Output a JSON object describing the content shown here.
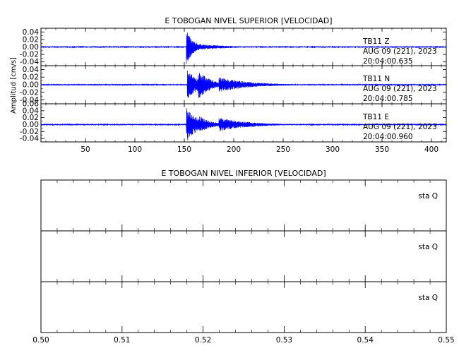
{
  "chart_data": [
    {
      "type": "line",
      "title": "E TOBOGAN NIVEL SUPERIOR [VELOCIDAD]",
      "ylabel": "Amplitud [cm/s]",
      "xlabel": "",
      "xlim": [
        5,
        415
      ],
      "x_ticks": [
        "50",
        "100",
        "150",
        "200",
        "250",
        "300",
        "350",
        "400"
      ],
      "x_tick_values": [
        50,
        100,
        150,
        200,
        250,
        300,
        350,
        400
      ],
      "grid": false,
      "color": "#0000ff",
      "panels": [
        {
          "name": "Z",
          "station": "TB11",
          "component": "Z",
          "date": "AUG 09 (221), 2023",
          "time": "20:04:00.635",
          "ylim": [
            -0.05,
            0.05
          ],
          "y_ticks": [
            "0.04",
            "0.02",
            "0.00",
            "-0.02",
            "-0.04"
          ],
          "y_tick_values": [
            0.04,
            0.02,
            0.0,
            -0.02,
            -0.04
          ],
          "noise": 0.002,
          "events": [
            {
              "t0": 152,
              "t1": 165,
              "amp": 0.05,
              "decay": 7
            },
            {
              "t0": 165,
              "t1": 230,
              "amp": 0.008,
              "decay": 30
            }
          ]
        },
        {
          "name": "N",
          "station": "TB11",
          "component": "N",
          "date": "AUG 09 (221), 2023",
          "time": "20:04:00.785",
          "ylim": [
            -0.05,
            0.05
          ],
          "y_ticks": [
            "0.04",
            "0.02",
            "0.00",
            "-0.02",
            "-0.04"
          ],
          "y_tick_values": [
            0.04,
            0.02,
            0.0,
            -0.02,
            -0.04
          ],
          "noise": 0.002,
          "events": [
            {
              "t0": 153,
              "t1": 190,
              "amp": 0.038,
              "decay": 12
            },
            {
              "t0": 164,
              "t1": 185,
              "amp": 0.04,
              "decay": 12
            },
            {
              "t0": 185,
              "t1": 275,
              "amp": 0.02,
              "decay": 30
            }
          ]
        },
        {
          "name": "E",
          "station": "TB11",
          "component": "E",
          "date": "AUG 09 (221), 2023",
          "time": "20:04:00.960",
          "ylim": [
            -0.05,
            0.06
          ],
          "y_ticks": [
            "0.06",
            "0.04",
            "0.02",
            "0.00",
            "-0.02",
            "-0.04"
          ],
          "y_tick_values": [
            0.06,
            0.04,
            0.02,
            0.0,
            -0.02,
            -0.04
          ],
          "noise": 0.002,
          "events": [
            {
              "t0": 152,
              "t1": 185,
              "amp": 0.05,
              "decay": 12
            },
            {
              "t0": 165,
              "t1": 185,
              "amp": 0.025,
              "decay": 12
            },
            {
              "t0": 185,
              "t1": 290,
              "amp": 0.02,
              "decay": 30
            }
          ]
        }
      ]
    },
    {
      "type": "line",
      "title": "E TOBOGAN NIVEL INFERIOR [VELOCIDAD]",
      "xlabel": "",
      "ylabel": "",
      "xlim": [
        0.5,
        0.55
      ],
      "x_ticks": [
        "0.50",
        "0.51",
        "0.52",
        "0.53",
        "0.54",
        "0.55"
      ],
      "x_tick_values": [
        0.5,
        0.51,
        0.52,
        0.53,
        0.54,
        0.55
      ],
      "grid": false,
      "panels": [
        {
          "label": "sta  Q"
        },
        {
          "label": "sta  Q"
        },
        {
          "label": "sta  Q"
        }
      ]
    }
  ]
}
